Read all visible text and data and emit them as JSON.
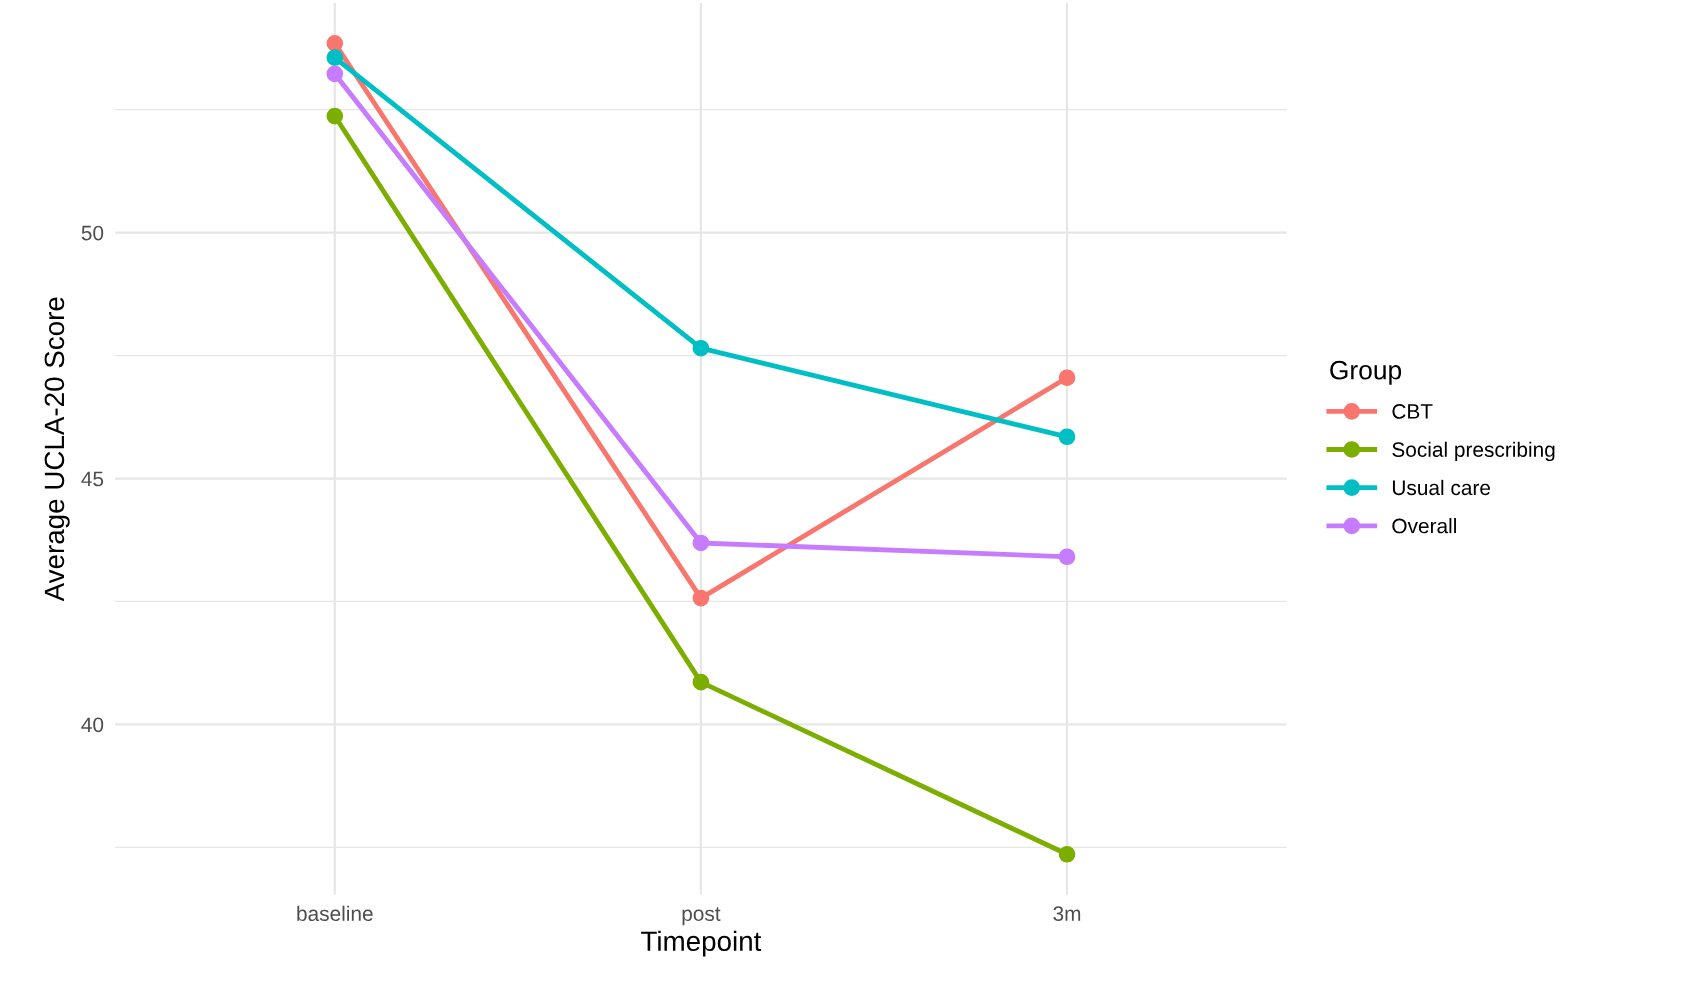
{
  "chart_data": {
    "type": "line",
    "xlabel": "Timepoint",
    "ylabel": "Average UCLA-20 Score",
    "legend_title": "Group",
    "categories": [
      "baseline",
      "post",
      "3m"
    ],
    "series": [
      {
        "name": "CBT",
        "color": "#f8766d",
        "values": [
          53.85,
          42.57,
          47.05
        ]
      },
      {
        "name": "Social prescribing",
        "color": "#7cae00",
        "values": [
          52.37,
          40.86,
          37.36
        ]
      },
      {
        "name": "Usual care",
        "color": "#00bfc4",
        "values": [
          53.56,
          47.65,
          45.85
        ]
      },
      {
        "name": "Overall",
        "color": "#c77cff",
        "values": [
          53.23,
          43.69,
          43.41
        ]
      }
    ],
    "ylim": [
      36.54,
      54.67
    ],
    "yticks": [
      {
        "value": 37.5,
        "label": null
      },
      40,
      {
        "value": 42.5,
        "label": null
      },
      45,
      {
        "value": 47.5,
        "label": null
      },
      50,
      {
        "value": 52.5,
        "label": null
      }
    ],
    "grid": true,
    "legend": "right",
    "marker": "circle",
    "line_style": "solid"
  }
}
